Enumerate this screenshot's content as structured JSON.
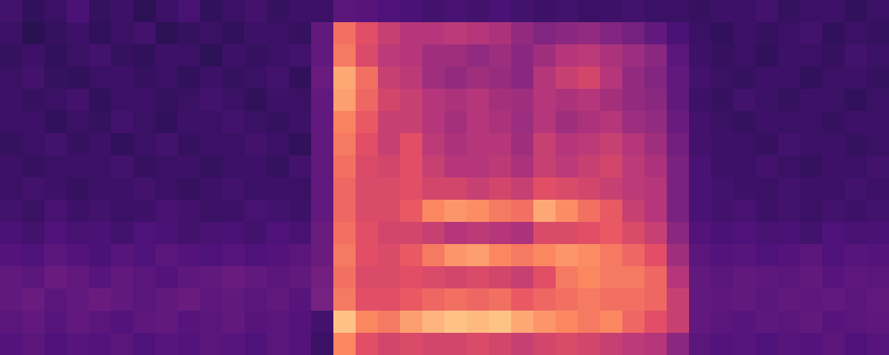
{
  "chart_data": {
    "type": "heatmap",
    "tick_labels": false,
    "zlim": [
      0,
      1
    ],
    "cells": [
      [
        0.22,
        0.18,
        0.2,
        0.24,
        0.19,
        0.21,
        0.17,
        0.2,
        0.23,
        0.18,
        0.2,
        0.22,
        0.19,
        0.21,
        0.2,
        0.28,
        0.27,
        0.25,
        0.24,
        0.22,
        0.23,
        0.22,
        0.24,
        0.22,
        0.21,
        0.22,
        0.2,
        0.21,
        0.22,
        0.2,
        0.2,
        0.19,
        0.21,
        0.2,
        0.22,
        0.19,
        0.2,
        0.21,
        0.18,
        0.2
      ],
      [
        0.2,
        0.16,
        0.19,
        0.21,
        0.18,
        0.2,
        0.22,
        0.17,
        0.19,
        0.2,
        0.18,
        0.21,
        0.2,
        0.19,
        0.3,
        0.7,
        0.62,
        0.55,
        0.5,
        0.5,
        0.52,
        0.5,
        0.48,
        0.42,
        0.38,
        0.4,
        0.42,
        0.38,
        0.35,
        0.3,
        0.24,
        0.2,
        0.18,
        0.21,
        0.19,
        0.2,
        0.22,
        0.18,
        0.2,
        0.19
      ],
      [
        0.19,
        0.21,
        0.18,
        0.2,
        0.22,
        0.19,
        0.18,
        0.21,
        0.2,
        0.17,
        0.21,
        0.19,
        0.2,
        0.22,
        0.3,
        0.72,
        0.6,
        0.52,
        0.5,
        0.45,
        0.45,
        0.42,
        0.44,
        0.4,
        0.45,
        0.5,
        0.52,
        0.48,
        0.44,
        0.4,
        0.28,
        0.21,
        0.19,
        0.2,
        0.18,
        0.21,
        0.2,
        0.19,
        0.22,
        0.2
      ],
      [
        0.2,
        0.22,
        0.19,
        0.18,
        0.2,
        0.21,
        0.19,
        0.2,
        0.18,
        0.21,
        0.19,
        0.2,
        0.22,
        0.18,
        0.32,
        0.82,
        0.7,
        0.55,
        0.52,
        0.45,
        0.42,
        0.45,
        0.43,
        0.4,
        0.5,
        0.55,
        0.58,
        0.5,
        0.42,
        0.38,
        0.3,
        0.22,
        0.2,
        0.19,
        0.21,
        0.2,
        0.18,
        0.2,
        0.21,
        0.19
      ],
      [
        0.21,
        0.19,
        0.2,
        0.22,
        0.18,
        0.2,
        0.21,
        0.19,
        0.2,
        0.22,
        0.2,
        0.18,
        0.21,
        0.2,
        0.3,
        0.8,
        0.68,
        0.58,
        0.55,
        0.5,
        0.48,
        0.5,
        0.46,
        0.45,
        0.5,
        0.48,
        0.5,
        0.46,
        0.42,
        0.4,
        0.3,
        0.21,
        0.19,
        0.22,
        0.2,
        0.19,
        0.21,
        0.2,
        0.18,
        0.2
      ],
      [
        0.2,
        0.21,
        0.18,
        0.2,
        0.19,
        0.22,
        0.2,
        0.18,
        0.21,
        0.2,
        0.22,
        0.2,
        0.19,
        0.21,
        0.3,
        0.74,
        0.65,
        0.55,
        0.55,
        0.5,
        0.46,
        0.5,
        0.48,
        0.44,
        0.5,
        0.45,
        0.48,
        0.5,
        0.44,
        0.42,
        0.32,
        0.22,
        0.2,
        0.19,
        0.21,
        0.2,
        0.2,
        0.19,
        0.21,
        0.2
      ],
      [
        0.19,
        0.2,
        0.22,
        0.19,
        0.21,
        0.18,
        0.2,
        0.22,
        0.19,
        0.21,
        0.2,
        0.22,
        0.2,
        0.18,
        0.3,
        0.72,
        0.62,
        0.55,
        0.62,
        0.52,
        0.48,
        0.5,
        0.5,
        0.45,
        0.55,
        0.5,
        0.52,
        0.55,
        0.5,
        0.45,
        0.34,
        0.22,
        0.21,
        0.2,
        0.19,
        0.22,
        0.2,
        0.21,
        0.19,
        0.2
      ],
      [
        0.21,
        0.19,
        0.2,
        0.21,
        0.2,
        0.22,
        0.19,
        0.2,
        0.21,
        0.19,
        0.2,
        0.21,
        0.19,
        0.22,
        0.3,
        0.7,
        0.6,
        0.58,
        0.62,
        0.55,
        0.5,
        0.5,
        0.52,
        0.48,
        0.55,
        0.52,
        0.55,
        0.58,
        0.52,
        0.48,
        0.36,
        0.24,
        0.21,
        0.2,
        0.22,
        0.2,
        0.19,
        0.21,
        0.2,
        0.22
      ],
      [
        0.2,
        0.22,
        0.21,
        0.19,
        0.2,
        0.21,
        0.22,
        0.2,
        0.19,
        0.21,
        0.22,
        0.2,
        0.21,
        0.2,
        0.3,
        0.68,
        0.6,
        0.6,
        0.62,
        0.58,
        0.58,
        0.55,
        0.58,
        0.55,
        0.62,
        0.6,
        0.58,
        0.55,
        0.52,
        0.5,
        0.36,
        0.24,
        0.22,
        0.21,
        0.2,
        0.22,
        0.21,
        0.2,
        0.22,
        0.21
      ],
      [
        0.22,
        0.2,
        0.23,
        0.21,
        0.22,
        0.2,
        0.21,
        0.23,
        0.22,
        0.2,
        0.21,
        0.23,
        0.22,
        0.21,
        0.3,
        0.68,
        0.6,
        0.6,
        0.65,
        0.75,
        0.78,
        0.76,
        0.72,
        0.7,
        0.82,
        0.76,
        0.7,
        0.65,
        0.55,
        0.5,
        0.36,
        0.24,
        0.22,
        0.23,
        0.21,
        0.22,
        0.2,
        0.22,
        0.21,
        0.22
      ],
      [
        0.24,
        0.22,
        0.25,
        0.23,
        0.24,
        0.22,
        0.25,
        0.24,
        0.22,
        0.23,
        0.24,
        0.22,
        0.25,
        0.23,
        0.32,
        0.7,
        0.62,
        0.58,
        0.58,
        0.55,
        0.5,
        0.52,
        0.5,
        0.48,
        0.6,
        0.6,
        0.62,
        0.65,
        0.6,
        0.55,
        0.4,
        0.26,
        0.24,
        0.25,
        0.23,
        0.24,
        0.22,
        0.25,
        0.23,
        0.24
      ],
      [
        0.26,
        0.25,
        0.28,
        0.26,
        0.24,
        0.27,
        0.25,
        0.28,
        0.26,
        0.25,
        0.27,
        0.25,
        0.26,
        0.28,
        0.32,
        0.72,
        0.62,
        0.6,
        0.65,
        0.72,
        0.78,
        0.8,
        0.75,
        0.72,
        0.75,
        0.78,
        0.76,
        0.72,
        0.68,
        0.62,
        0.45,
        0.28,
        0.26,
        0.27,
        0.25,
        0.26,
        0.28,
        0.25,
        0.27,
        0.26
      ],
      [
        0.3,
        0.28,
        0.32,
        0.3,
        0.27,
        0.3,
        0.28,
        0.26,
        0.29,
        0.3,
        0.32,
        0.3,
        0.28,
        0.3,
        0.34,
        0.7,
        0.6,
        0.6,
        0.62,
        0.6,
        0.58,
        0.6,
        0.58,
        0.55,
        0.62,
        0.72,
        0.75,
        0.72,
        0.72,
        0.68,
        0.5,
        0.3,
        0.28,
        0.3,
        0.29,
        0.28,
        0.3,
        0.27,
        0.29,
        0.28
      ],
      [
        0.3,
        0.32,
        0.28,
        0.3,
        0.32,
        0.3,
        0.28,
        0.3,
        0.32,
        0.29,
        0.3,
        0.28,
        0.3,
        0.27,
        0.35,
        0.72,
        0.62,
        0.62,
        0.65,
        0.68,
        0.7,
        0.68,
        0.7,
        0.65,
        0.68,
        0.7,
        0.72,
        0.7,
        0.7,
        0.68,
        0.55,
        0.3,
        0.29,
        0.3,
        0.28,
        0.3,
        0.29,
        0.3,
        0.28,
        0.3
      ],
      [
        0.28,
        0.3,
        0.27,
        0.3,
        0.28,
        0.26,
        0.29,
        0.3,
        0.27,
        0.28,
        0.3,
        0.27,
        0.28,
        0.26,
        0.22,
        0.88,
        0.75,
        0.72,
        0.8,
        0.85,
        0.88,
        0.86,
        0.88,
        0.82,
        0.78,
        0.75,
        0.72,
        0.75,
        0.68,
        0.62,
        0.55,
        0.3,
        0.28,
        0.27,
        0.29,
        0.28,
        0.3,
        0.27,
        0.28,
        0.29
      ],
      [
        0.26,
        0.28,
        0.25,
        0.27,
        0.26,
        0.28,
        0.25,
        0.27,
        0.26,
        0.28,
        0.27,
        0.25,
        0.28,
        0.26,
        0.2,
        0.75,
        0.62,
        0.58,
        0.6,
        0.58,
        0.58,
        0.6,
        0.58,
        0.55,
        0.58,
        0.6,
        0.58,
        0.55,
        0.52,
        0.5,
        0.4,
        0.28,
        0.26,
        0.27,
        0.25,
        0.27,
        0.26,
        0.28,
        0.25,
        0.27
      ]
    ]
  }
}
